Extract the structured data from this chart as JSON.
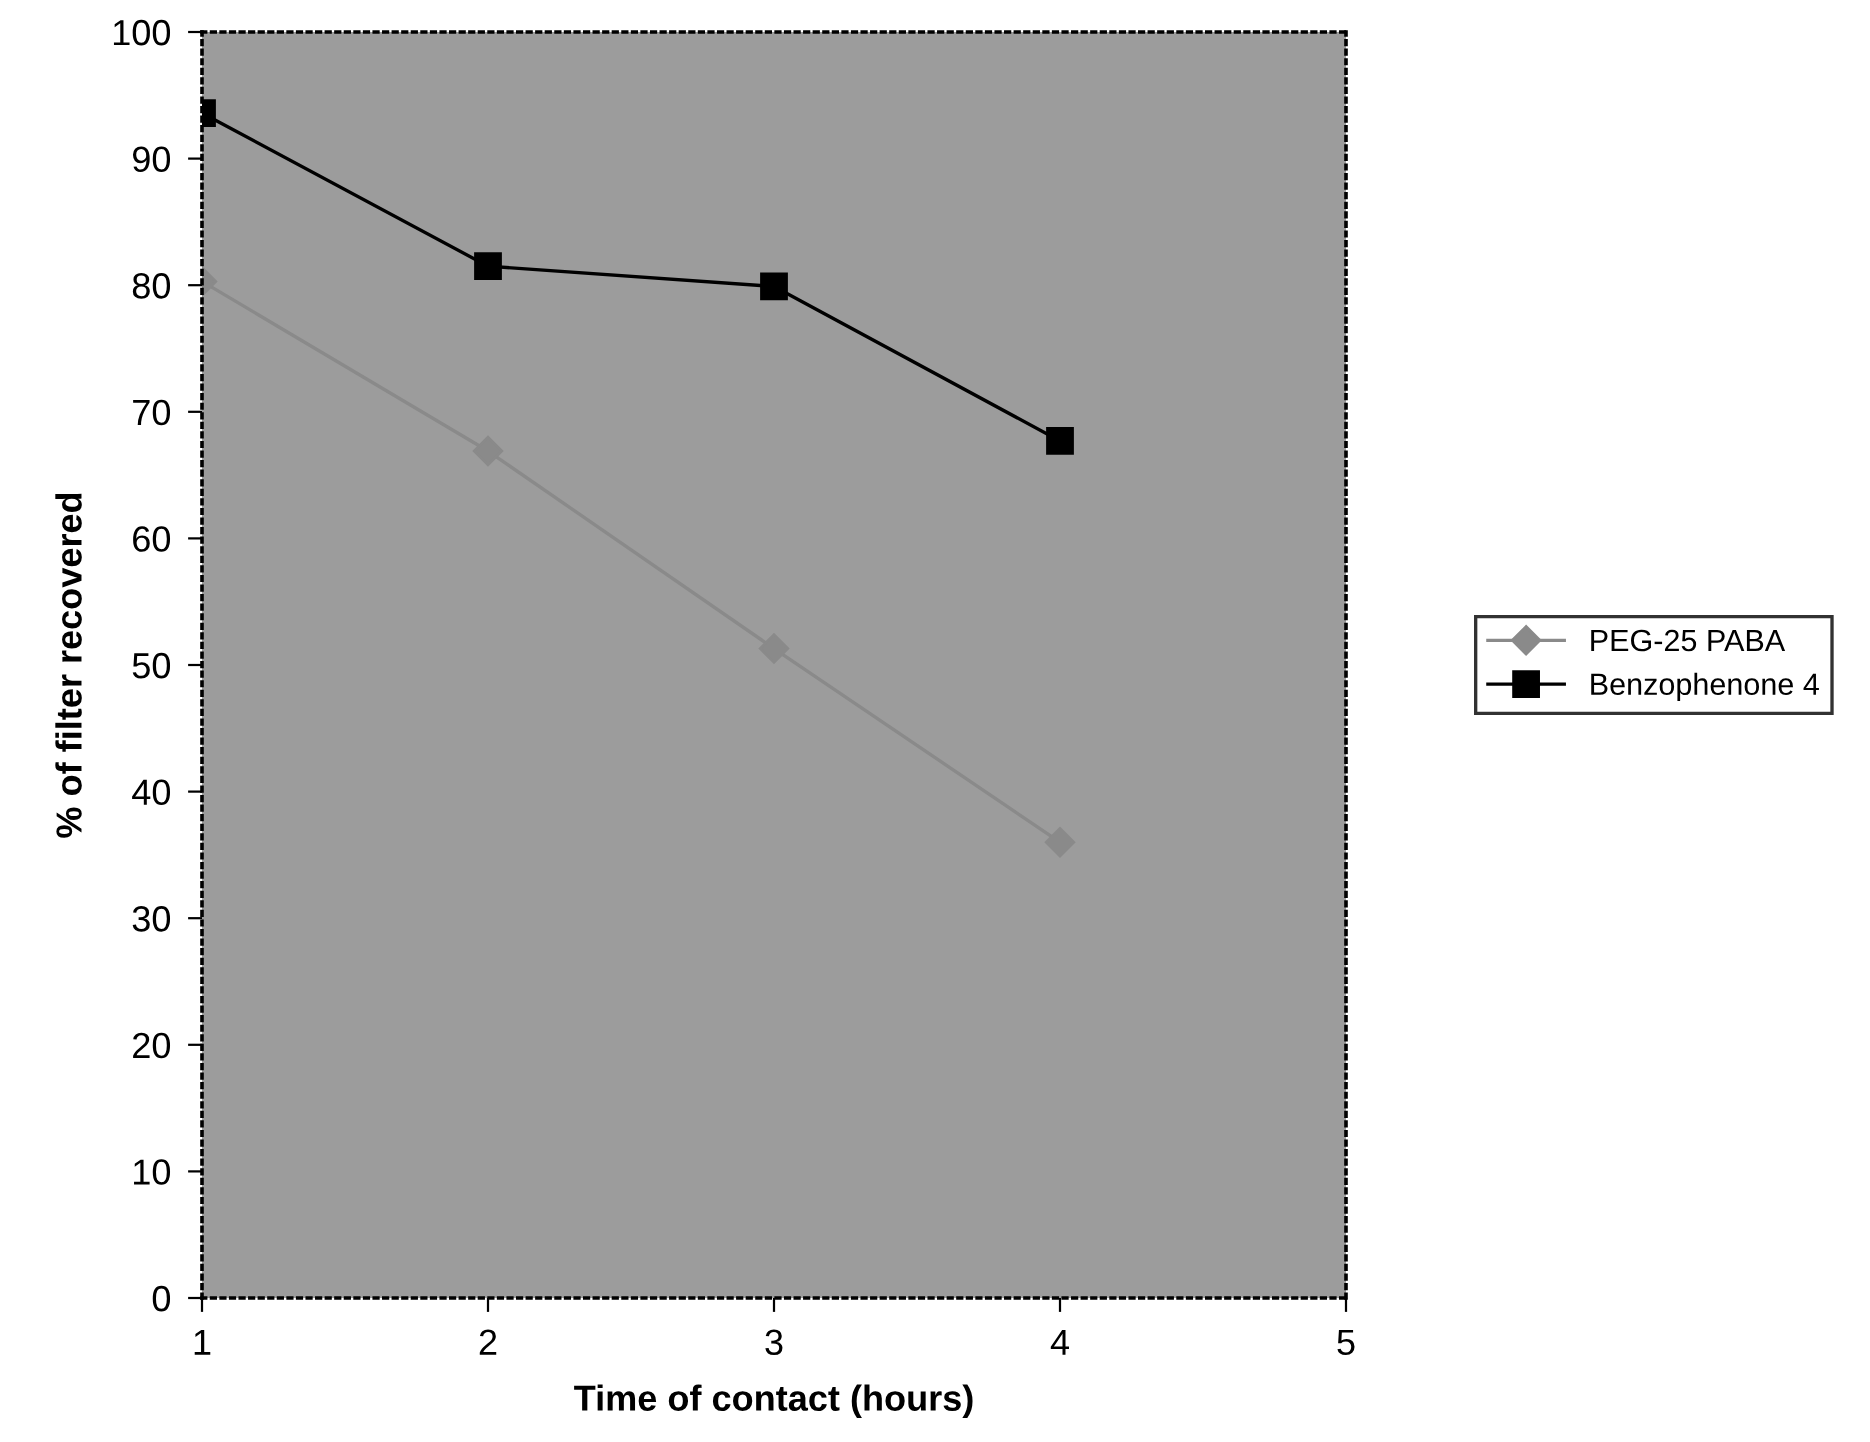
{
  "chart_data": {
    "type": "line",
    "xlabel": "Time of contact (hours)",
    "ylabel": "% of filter recovered",
    "x": [
      1,
      2,
      3,
      4
    ],
    "series": [
      {
        "name": "PEG-25 PABA",
        "color": "#8a8a8a",
        "marker": "diamond",
        "values": [
          80.3,
          66.9,
          51.3,
          36.0
        ]
      },
      {
        "name": "Benzophenone 4",
        "color": "#000000",
        "marker": "square",
        "values": [
          93.6,
          81.5,
          79.9,
          67.7
        ]
      }
    ],
    "xlim": [
      1,
      5
    ],
    "xticks": [
      1,
      2,
      3,
      4,
      5
    ],
    "ylim": [
      0,
      100
    ],
    "yticks": [
      0,
      10,
      20,
      30,
      40,
      50,
      60,
      70,
      80,
      90,
      100
    ],
    "grid": false,
    "legend": "right",
    "line_style": "solid"
  }
}
